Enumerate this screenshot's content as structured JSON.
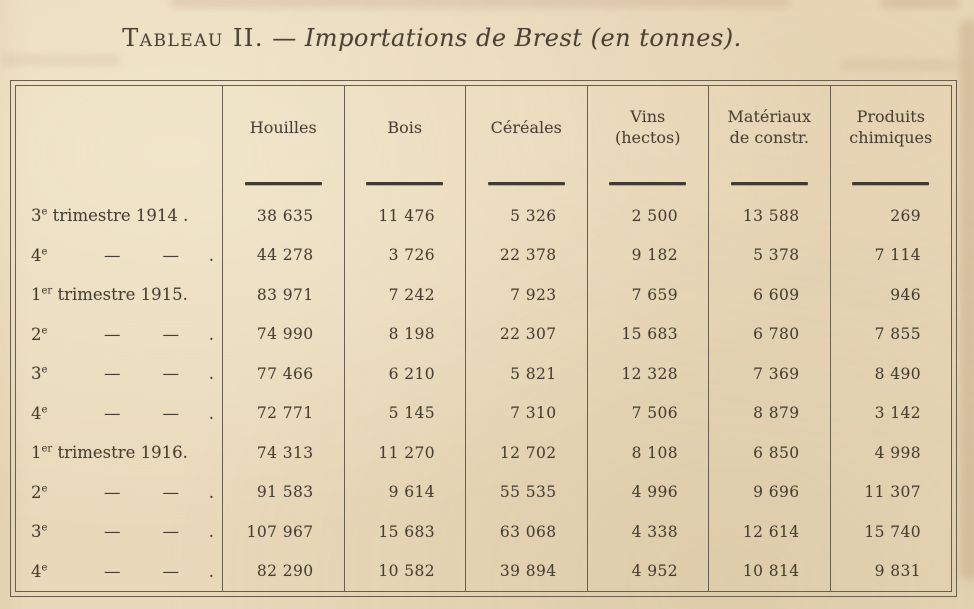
{
  "title": {
    "smallcaps": "Tableau II.",
    "separator": "—",
    "italic": "Importations de Brest (en tonnes)."
  },
  "table": {
    "unit_note": "en tonnes",
    "columns": [
      {
        "key": "houilles",
        "line1": "Houilles",
        "line2": ""
      },
      {
        "key": "bois",
        "line1": "Bois",
        "line2": ""
      },
      {
        "key": "cereales",
        "line1": "Céréales",
        "line2": ""
      },
      {
        "key": "vins",
        "line1": "Vins",
        "line2": "(hectos)"
      },
      {
        "key": "materiaux-de-constr",
        "line1": "Matériaux",
        "line2": "de constr."
      },
      {
        "key": "produits-chimiques",
        "line1": "Produits",
        "line2": "chimiques"
      }
    ],
    "rows": [
      {
        "ord": "3",
        "sup": "e",
        "rest": " trimestre 1914 .",
        "dash": false,
        "values": [
          "38 635",
          "11 476",
          "5 326",
          "2 500",
          "13 588",
          "269"
        ]
      },
      {
        "ord": "4",
        "sup": "e",
        "rest": "",
        "dash": true,
        "dot": ".",
        "values": [
          "44 278",
          "3 726",
          "22 378",
          "9 182",
          "5 378",
          "7 114"
        ]
      },
      {
        "ord": "1",
        "sup": "er",
        "rest": " trimestre 1915.",
        "dash": false,
        "values": [
          "83 971",
          "7 242",
          "7 923",
          "7 659",
          "6 609",
          "946"
        ]
      },
      {
        "ord": "2",
        "sup": "e",
        "rest": "",
        "dash": true,
        "dot": ".",
        "values": [
          "74 990",
          "8 198",
          "22 307",
          "15 683",
          "6 780",
          "7 855"
        ]
      },
      {
        "ord": "3",
        "sup": "e",
        "rest": "",
        "dash": true,
        "dot": ".",
        "values": [
          "77 466",
          "6 210",
          "5 821",
          "12 328",
          "7 369",
          "8 490"
        ]
      },
      {
        "ord": "4",
        "sup": "e",
        "rest": "",
        "dash": true,
        "dot": ".",
        "values": [
          "72 771",
          "5 145",
          "7 310",
          "7 506",
          "8 879",
          "3 142"
        ]
      },
      {
        "ord": "1",
        "sup": "er",
        "rest": " trimestre 1916.",
        "dash": false,
        "values": [
          "74 313",
          "11 270",
          "12 702",
          "8 108",
          "6 850",
          "4 998"
        ]
      },
      {
        "ord": "2",
        "sup": "e",
        "rest": "",
        "dash": true,
        "dot": ".",
        "values": [
          "91 583",
          "9 614",
          "55 535",
          "4 996",
          "9 696",
          "11 307"
        ]
      },
      {
        "ord": "3",
        "sup": "e",
        "rest": "",
        "dash": true,
        "dot": ".",
        "values": [
          "107 967",
          "15 683",
          "63 068",
          "4 338",
          "12 614",
          "15 740"
        ]
      },
      {
        "ord": "4",
        "sup": "e",
        "rest": "",
        "dash": true,
        "dot": ".",
        "values": [
          "82 290",
          "10 582",
          "39 894",
          "4 952",
          "10 814",
          "9 831"
        ]
      }
    ]
  }
}
